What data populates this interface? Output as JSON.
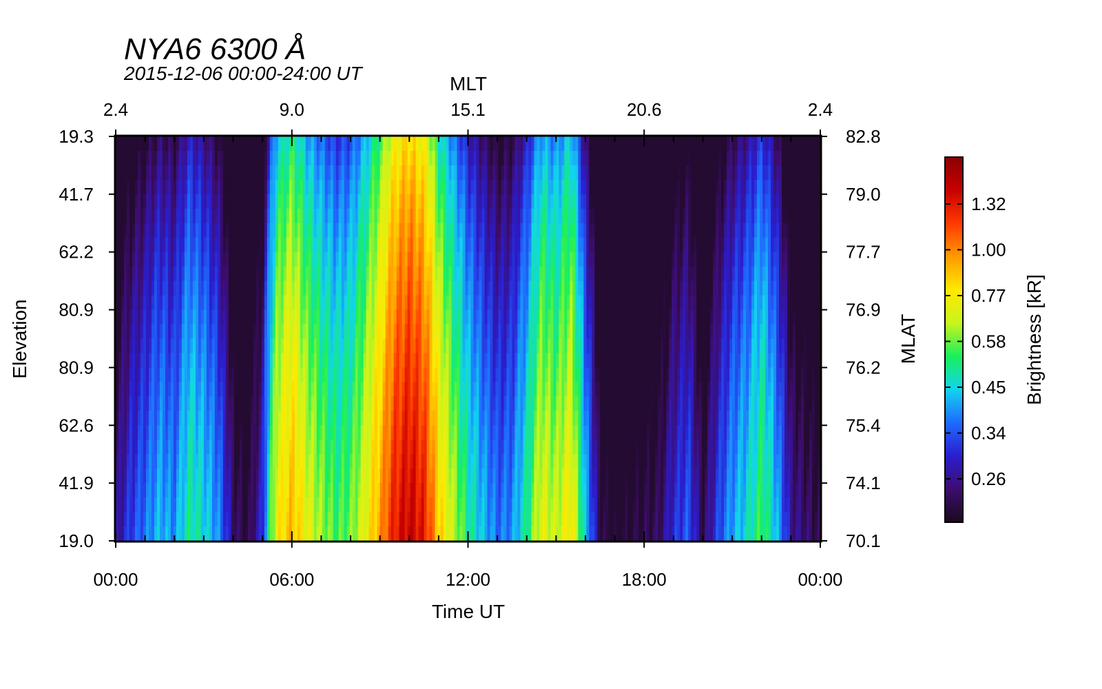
{
  "chart_data": {
    "type": "heatmap",
    "title": "NYA6 6300 Å",
    "subtitle": "2015-12-06 00:00-24:00 UT",
    "xlabel": "Time UT",
    "x2label": "MLT",
    "ylabel": "Elevation",
    "y2label": "MLAT",
    "colorbar_label": "Brightness [kR]",
    "x_ticks": [
      "00:00",
      "06:00",
      "12:00",
      "18:00",
      "00:00"
    ],
    "x_hours": [
      0,
      6,
      12,
      18,
      24
    ],
    "xlim": [
      0,
      24
    ],
    "mlt_ticks": [
      "2.4",
      "9.0",
      "15.1",
      "20.6",
      "2.4"
    ],
    "elevation_ticks": [
      "19.3",
      "41.7",
      "62.2",
      "80.9",
      "80.9",
      "62.6",
      "41.9",
      "19.0"
    ],
    "mlat_ticks": [
      "82.8",
      "79.0",
      "77.7",
      "76.9",
      "76.2",
      "75.4",
      "74.1",
      "70.1"
    ],
    "colorbar_ticks": [
      "1.32",
      "1.00",
      "0.77",
      "0.58",
      "0.45",
      "0.34",
      "0.26"
    ],
    "colormap": [
      "#1a0a1a",
      "#3d0d6e",
      "#2a1ecf",
      "#1e6bff",
      "#12d4ee",
      "#19f05a",
      "#c8f51e",
      "#ffe900",
      "#ff9a00",
      "#ff3a00",
      "#c80000",
      "#8b0000"
    ],
    "brightness_profile": [
      {
        "t": 0.0,
        "v": 0.25
      },
      {
        "t": 0.5,
        "v": 0.32
      },
      {
        "t": 1.0,
        "v": 0.36
      },
      {
        "t": 1.5,
        "v": 0.42
      },
      {
        "t": 2.0,
        "v": 0.38
      },
      {
        "t": 2.5,
        "v": 0.5
      },
      {
        "t": 3.0,
        "v": 0.45
      },
      {
        "t": 3.5,
        "v": 0.38
      },
      {
        "t": 4.0,
        "v": 0.24
      },
      {
        "t": 4.5,
        "v": 0.21
      },
      {
        "t": 5.0,
        "v": 0.3
      },
      {
        "t": 5.5,
        "v": 0.75
      },
      {
        "t": 6.0,
        "v": 0.9
      },
      {
        "t": 6.5,
        "v": 0.72
      },
      {
        "t": 7.0,
        "v": 0.62
      },
      {
        "t": 7.5,
        "v": 0.55
      },
      {
        "t": 8.0,
        "v": 0.58
      },
      {
        "t": 8.5,
        "v": 0.72
      },
      {
        "t": 9.0,
        "v": 0.95
      },
      {
        "t": 9.5,
        "v": 1.3
      },
      {
        "t": 10.0,
        "v": 1.45
      },
      {
        "t": 10.5,
        "v": 1.3
      },
      {
        "t": 11.0,
        "v": 0.85
      },
      {
        "t": 11.5,
        "v": 0.65
      },
      {
        "t": 12.0,
        "v": 0.5
      },
      {
        "t": 12.5,
        "v": 0.42
      },
      {
        "t": 13.0,
        "v": 0.36
      },
      {
        "t": 13.5,
        "v": 0.38
      },
      {
        "t": 14.0,
        "v": 0.5
      },
      {
        "t": 14.5,
        "v": 0.72
      },
      {
        "t": 15.0,
        "v": 0.65
      },
      {
        "t": 15.5,
        "v": 0.78
      },
      {
        "t": 16.0,
        "v": 0.42
      },
      {
        "t": 16.5,
        "v": 0.22
      },
      {
        "t": 17.0,
        "v": 0.2
      },
      {
        "t": 17.5,
        "v": 0.21
      },
      {
        "t": 18.0,
        "v": 0.22
      },
      {
        "t": 18.5,
        "v": 0.23
      },
      {
        "t": 19.0,
        "v": 0.3
      },
      {
        "t": 19.5,
        "v": 0.34
      },
      {
        "t": 20.0,
        "v": 0.22
      },
      {
        "t": 20.5,
        "v": 0.32
      },
      {
        "t": 21.0,
        "v": 0.4
      },
      {
        "t": 21.5,
        "v": 0.45
      },
      {
        "t": 22.0,
        "v": 0.55
      },
      {
        "t": 22.5,
        "v": 0.42
      },
      {
        "t": 23.0,
        "v": 0.26
      },
      {
        "t": 23.5,
        "v": 0.24
      },
      {
        "t": 24.0,
        "v": 0.22
      }
    ]
  }
}
